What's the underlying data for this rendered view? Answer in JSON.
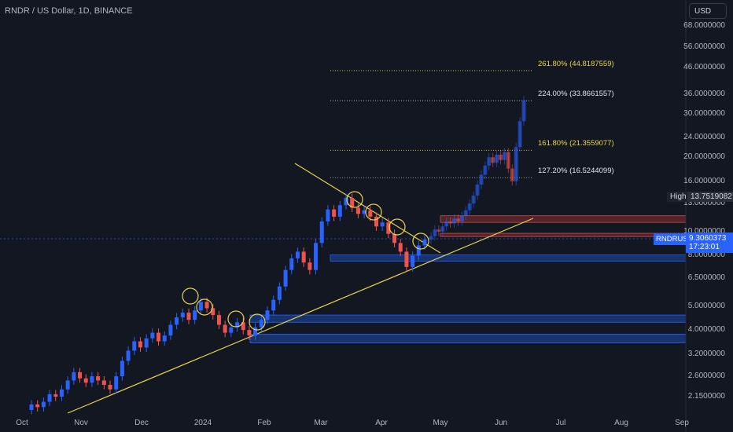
{
  "header": {
    "title": "RNDR / US Dollar, 1D, BINANCE",
    "currency": "USD"
  },
  "badges": {
    "high_label": "High",
    "high_value": "13.7519082",
    "symbol": "RNDRUSD",
    "price": "9.3060373",
    "countdown": "17:23:01"
  },
  "colors": {
    "background": "#131722",
    "up": "#2962ff",
    "down": "#ef5350",
    "trendline": "#e8d44d",
    "fib": "#e8d44d",
    "zone_blue": "#1e4ba8",
    "zone_red": "#6b2a2e"
  },
  "chart_data": {
    "type": "candlestick",
    "y_scale": "log",
    "ylim": [
      1.9,
      75
    ],
    "yticks": [
      "68.0000000",
      "56.0000000",
      "46.0000000",
      "36.0000000",
      "30.0000000",
      "24.0000000",
      "20.0000000",
      "16.0000000",
      "13.0000000",
      "10.0000000",
      "8.0000000",
      "6.5000000",
      "5.0000000",
      "4.0000000",
      "3.2000000",
      "2.6000000",
      "2.1500000"
    ],
    "xticks": [
      "Oct",
      "Nov",
      "Dec",
      "2024",
      "Feb",
      "Mar",
      "Apr",
      "May",
      "Jun",
      "Jul",
      "Aug",
      "Sep"
    ],
    "fib_levels": [
      {
        "label": "261.80% (44.8187559)",
        "value": 44.8187559
      },
      {
        "label": "224.00% (33.8661557)",
        "value": 33.8661557
      },
      {
        "label": "161.80% (21.3559077)",
        "value": 21.3559077
      },
      {
        "label": "127.20% (16.5244099)",
        "value": 16.5244099
      }
    ],
    "zones": [
      {
        "color": "red",
        "low": 10.9,
        "high": 11.6
      },
      {
        "color": "red",
        "low": 9.55,
        "high": 9.85
      },
      {
        "color": "blue",
        "low": 7.6,
        "high": 8.05
      },
      {
        "color": "blue",
        "low": 4.3,
        "high": 4.6
      },
      {
        "color": "blue",
        "low": 3.55,
        "high": 3.85
      }
    ],
    "candles": [
      [
        1.9,
        2.0
      ],
      [
        2.0,
        1.95
      ],
      [
        1.95,
        2.05
      ],
      [
        2.05,
        2.2
      ],
      [
        2.2,
        2.15
      ],
      [
        2.15,
        2.3
      ],
      [
        2.3,
        2.5
      ],
      [
        2.5,
        2.7
      ],
      [
        2.7,
        2.55
      ],
      [
        2.55,
        2.45
      ],
      [
        2.45,
        2.6
      ],
      [
        2.6,
        2.5
      ],
      [
        2.5,
        2.4
      ],
      [
        2.4,
        2.3
      ],
      [
        2.3,
        2.6
      ],
      [
        2.6,
        3.0
      ],
      [
        3.0,
        3.3
      ],
      [
        3.3,
        3.6
      ],
      [
        3.6,
        3.4
      ],
      [
        3.4,
        3.7
      ],
      [
        3.7,
        3.9
      ],
      [
        3.9,
        3.6
      ],
      [
        3.6,
        3.8
      ],
      [
        3.8,
        4.2
      ],
      [
        4.2,
        4.5
      ],
      [
        4.5,
        4.7
      ],
      [
        4.7,
        4.4
      ],
      [
        4.4,
        4.8
      ],
      [
        4.8,
        5.2
      ],
      [
        5.2,
        4.9
      ],
      [
        4.9,
        4.6
      ],
      [
        4.6,
        4.2
      ],
      [
        4.2,
        3.9
      ],
      [
        3.9,
        4.1
      ],
      [
        4.1,
        4.3
      ],
      [
        4.3,
        4.0
      ],
      [
        4.0,
        3.8
      ],
      [
        3.8,
        4.1
      ],
      [
        4.1,
        4.4
      ],
      [
        4.4,
        4.8
      ],
      [
        4.8,
        5.3
      ],
      [
        5.3,
        6.0
      ],
      [
        6.0,
        7.0
      ],
      [
        7.0,
        7.8
      ],
      [
        7.8,
        8.3
      ],
      [
        8.3,
        7.5
      ],
      [
        7.5,
        7.0
      ],
      [
        7.0,
        9.0
      ],
      [
        9.0,
        11.0
      ],
      [
        11.0,
        12.3
      ],
      [
        12.3,
        11.5
      ],
      [
        11.5,
        12.8
      ],
      [
        12.8,
        13.7
      ],
      [
        13.7,
        12.5
      ],
      [
        12.5,
        11.8
      ],
      [
        11.8,
        12.2
      ],
      [
        12.2,
        11.5
      ],
      [
        11.5,
        10.5
      ],
      [
        10.5,
        10.9
      ],
      [
        10.9,
        9.8
      ],
      [
        9.8,
        9.0
      ],
      [
        9.0,
        8.3
      ],
      [
        8.3,
        7.2
      ],
      [
        7.2,
        8.0
      ],
      [
        8.0,
        8.8
      ],
      [
        8.8,
        9.3
      ]
    ],
    "projection_candles": [
      [
        9.3,
        9.6
      ],
      [
        9.6,
        10.2
      ],
      [
        10.2,
        10.0
      ],
      [
        10.0,
        10.5
      ],
      [
        10.5,
        11.0
      ],
      [
        11.0,
        10.8
      ],
      [
        10.8,
        11.3
      ],
      [
        11.3,
        11.0
      ],
      [
        11.0,
        11.6
      ],
      [
        11.6,
        12.2
      ],
      [
        12.2,
        13.0
      ],
      [
        13.0,
        14.0
      ],
      [
        14.0,
        15.5
      ],
      [
        15.5,
        17.0
      ],
      [
        17.0,
        18.5
      ],
      [
        18.5,
        20.0
      ],
      [
        20.0,
        19.0
      ],
      [
        19.0,
        20.5
      ],
      [
        20.5,
        19.5
      ],
      [
        19.5,
        21.0
      ],
      [
        21.0,
        18.0
      ],
      [
        18.0,
        16.0
      ],
      [
        16.0,
        22.0
      ],
      [
        22.0,
        28.0
      ],
      [
        28.0,
        34.0
      ]
    ]
  }
}
